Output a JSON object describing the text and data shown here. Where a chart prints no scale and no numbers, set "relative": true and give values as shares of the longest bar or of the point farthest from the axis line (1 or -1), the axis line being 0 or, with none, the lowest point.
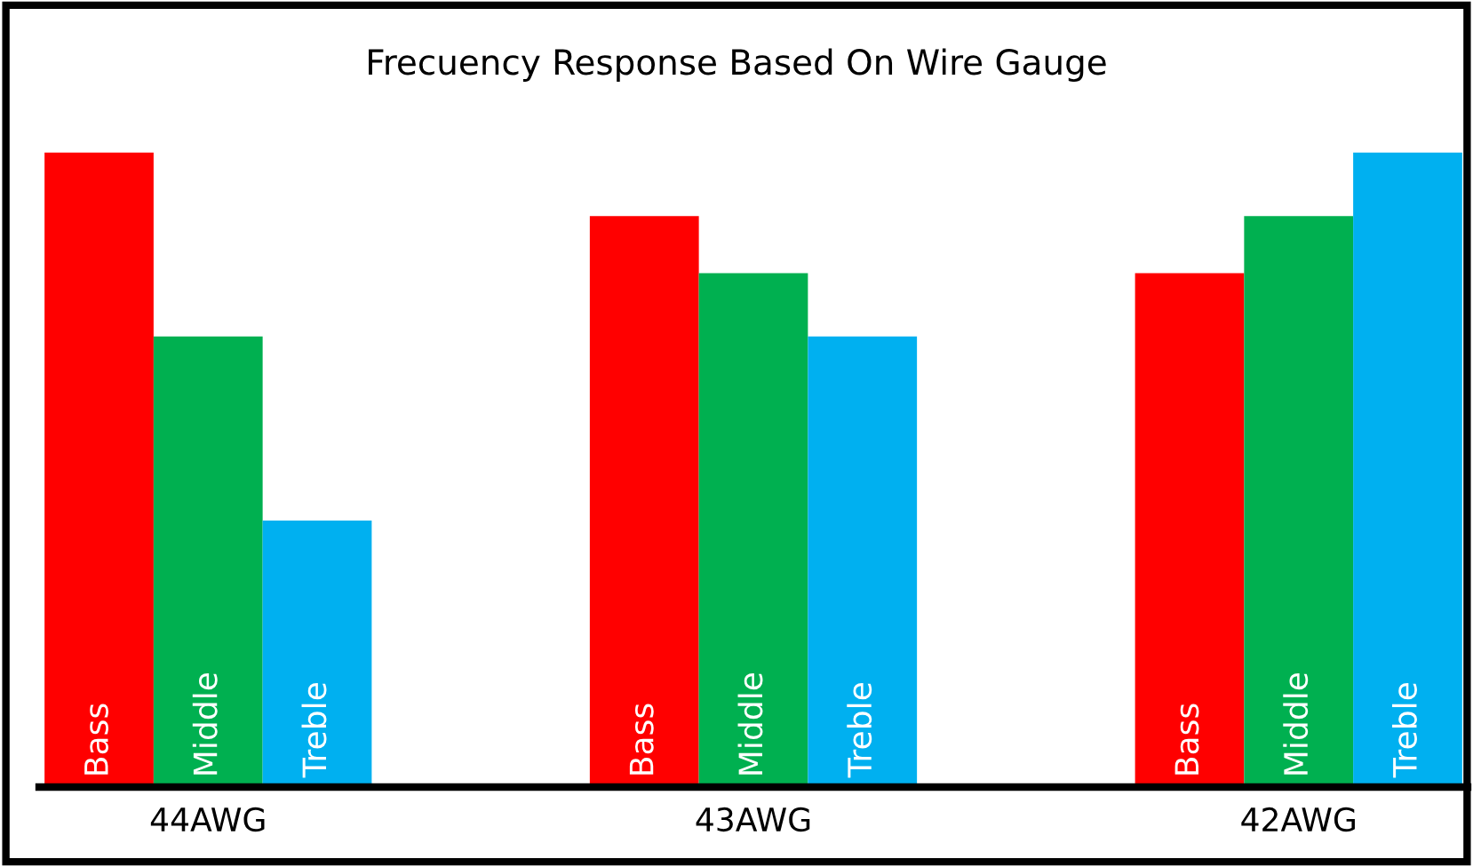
{
  "chart_data": {
    "type": "bar",
    "title": "Frecuency Response Based On Wire Gauge",
    "relative": true,
    "categories": [
      "44AWG",
      "43AWG",
      "42AWG"
    ],
    "series": [
      {
        "name": "Bass",
        "color": "#ff0000",
        "values": [
          1.0,
          0.9,
          0.81
        ]
      },
      {
        "name": "Middle",
        "color": "#00b050",
        "values": [
          0.71,
          0.81,
          0.9
        ]
      },
      {
        "name": "Treble",
        "color": "#00b0f0",
        "values": [
          0.42,
          0.71,
          1.0
        ]
      }
    ]
  }
}
